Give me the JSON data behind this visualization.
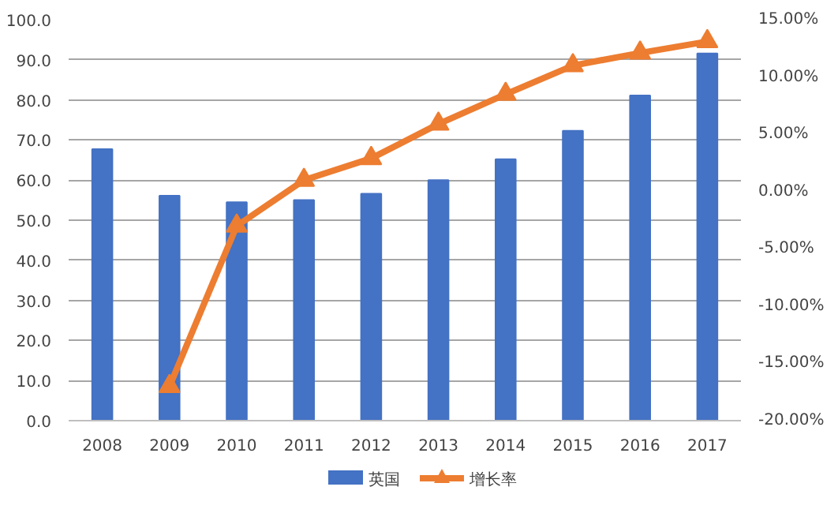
{
  "chart_data": {
    "type": "bar",
    "categories": [
      "2008",
      "2009",
      "2010",
      "2011",
      "2012",
      "2013",
      "2014",
      "2015",
      "2016",
      "2017"
    ],
    "series": [
      {
        "name": "英国",
        "color": "#4472c4",
        "values": [
          67.7,
          56.1,
          54.5,
          55.0,
          56.6,
          60.0,
          65.2,
          72.3,
          81.1,
          91.6
        ]
      },
      {
        "name": "增长率",
        "type": "line",
        "axis": "y2",
        "color": "#ed7d31",
        "marker": "triangle",
        "values": [
          null,
          -17.0,
          -3.0,
          1.0,
          2.9,
          5.9,
          8.5,
          11.0,
          12.1,
          13.1
        ]
      }
    ],
    "ylim": [
      0,
      100
    ],
    "yticks": [
      {
        "value": 0,
        "label": "0.0"
      },
      {
        "value": 10,
        "label": "10.0"
      },
      {
        "value": 20,
        "label": "20.0"
      },
      {
        "value": 30,
        "label": "30.0"
      },
      {
        "value": 40,
        "label": "40.0"
      },
      {
        "value": 50,
        "label": "50.0"
      },
      {
        "value": 60,
        "label": "60.0"
      },
      {
        "value": 70,
        "label": "70.0"
      },
      {
        "value": 80,
        "label": "80.0"
      },
      {
        "value": 90,
        "label": "90.0"
      },
      {
        "value": 100,
        "label": "100.0"
      }
    ],
    "y2lim": [
      -20,
      15
    ],
    "y2ticks": [
      {
        "value": -20,
        "label": "-20.00%"
      },
      {
        "value": -15,
        "label": "-15.00%"
      },
      {
        "value": -10,
        "label": "-10.00%"
      },
      {
        "value": -5,
        "label": "-5.00%"
      },
      {
        "value": 0,
        "label": "0.00%"
      },
      {
        "value": 5,
        "label": "5.00%"
      },
      {
        "value": 10,
        "label": "10.00%"
      },
      {
        "value": 15,
        "label": "15.00%"
      }
    ],
    "grid": "y",
    "legend": "bottom"
  }
}
